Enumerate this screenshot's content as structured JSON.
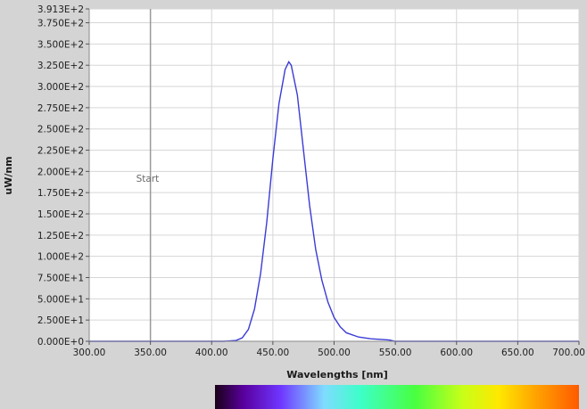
{
  "chart_data": {
    "type": "line",
    "xlabel": "Wavelengths [nm]",
    "ylabel": "uW/nm",
    "xlim": [
      300,
      700
    ],
    "ylim": [
      0,
      391.3
    ],
    "x_tick_values": [
      300,
      350,
      400,
      450,
      500,
      550,
      600,
      650,
      700
    ],
    "x_tick_labels": [
      "300.00",
      "350.00",
      "400.00",
      "450.00",
      "500.00",
      "550.00",
      "600.00",
      "650.00",
      "700.00"
    ],
    "y_tick_values": [
      0,
      25,
      50,
      75,
      100,
      125,
      150,
      175,
      200,
      225,
      250,
      275,
      300,
      325,
      350,
      375,
      391.3
    ],
    "y_tick_labels": [
      "0.000E+0",
      "2.500E+1",
      "5.000E+1",
      "7.500E+1",
      "1.000E+2",
      "1.250E+2",
      "1.500E+2",
      "1.750E+2",
      "2.000E+2",
      "2.250E+2",
      "2.500E+2",
      "2.750E+2",
      "3.000E+2",
      "3.250E+2",
      "3.500E+2",
      "3.750E+2",
      "3.913E+2"
    ],
    "grid": true,
    "series": [
      {
        "color": "#3b3bd6",
        "x": [
          300,
          400,
          410,
          420,
          425,
          430,
          435,
          440,
          445,
          450,
          455,
          460,
          463,
          465,
          470,
          475,
          480,
          485,
          490,
          495,
          500,
          505,
          510,
          520,
          530,
          540,
          545,
          550,
          600,
          700
        ],
        "y": [
          0,
          0,
          0,
          1,
          4,
          14,
          38,
          80,
          140,
          215,
          280,
          320,
          329,
          325,
          290,
          225,
          160,
          108,
          72,
          46,
          28,
          17,
          10,
          5,
          3,
          2,
          1.5,
          0,
          0,
          0
        ]
      }
    ],
    "marker": {
      "x": 350,
      "label": "Start"
    }
  },
  "colors": {
    "background": "#d4d4d4",
    "plot_area": "#ffffff",
    "grid": "#d6d6d6",
    "marker_line": "#9a9a9a"
  }
}
